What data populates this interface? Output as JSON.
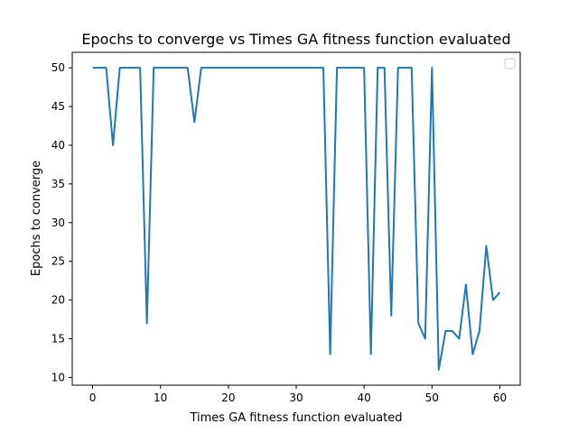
{
  "chart_data": {
    "type": "line",
    "title": "Epochs to converge vs Times GA fitness function evaluated",
    "xlabel": "Times GA fitness function evaluated",
    "ylabel": "Epochs to converge",
    "xlim": [
      -3,
      63
    ],
    "ylim": [
      9,
      52
    ],
    "xticks": [
      0,
      10,
      20,
      30,
      40,
      50,
      60
    ],
    "yticks": [
      10,
      15,
      20,
      25,
      30,
      35,
      40,
      45,
      50
    ],
    "grid": false,
    "legend": "top-right, empty",
    "series": [
      {
        "color": "#1f77b4",
        "x": [
          0,
          1,
          2,
          3,
          4,
          5,
          6,
          7,
          8,
          9,
          10,
          11,
          12,
          13,
          14,
          15,
          16,
          17,
          18,
          19,
          20,
          21,
          22,
          23,
          24,
          25,
          26,
          27,
          28,
          29,
          30,
          31,
          32,
          33,
          34,
          35,
          36,
          37,
          38,
          39,
          40,
          41,
          42,
          43,
          44,
          45,
          46,
          47,
          48,
          49,
          50,
          51,
          52,
          53,
          54,
          55,
          56,
          57,
          58,
          59,
          60
        ],
        "y": [
          50,
          50,
          50,
          40,
          50,
          50,
          50,
          50,
          17,
          50,
          50,
          50,
          50,
          50,
          50,
          43,
          50,
          50,
          50,
          50,
          50,
          50,
          50,
          50,
          50,
          50,
          50,
          50,
          50,
          50,
          50,
          50,
          50,
          50,
          50,
          13,
          50,
          50,
          50,
          50,
          50,
          13,
          50,
          50,
          18,
          50,
          50,
          50,
          17,
          15,
          50,
          11,
          16,
          16,
          15,
          22,
          13,
          16,
          27,
          20,
          21
        ]
      }
    ]
  }
}
